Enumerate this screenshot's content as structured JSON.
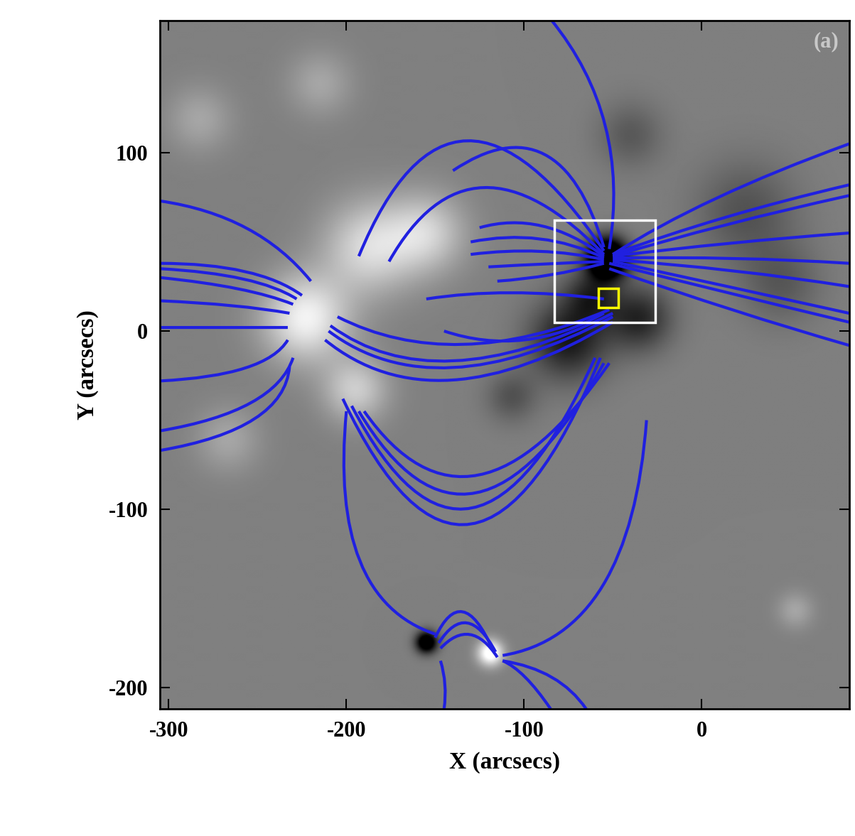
{
  "chart_data": {
    "type": "magnetogram",
    "panel_label": "(a)",
    "xlabel": "X (arcsecs)",
    "ylabel": "Y (arcsecs)",
    "xlim": [
      -305,
      83
    ],
    "ylim": [
      -212,
      174
    ],
    "xticks": [
      -300,
      -200,
      -100,
      0
    ],
    "yticks": [
      -200,
      -100,
      0,
      100
    ],
    "regions": [
      {
        "x": -53,
        "y": 41,
        "radius": 11,
        "flux": -2.0
      },
      {
        "x": -75,
        "y": -5,
        "radius": 22,
        "flux": -0.8
      },
      {
        "x": -35,
        "y": 7,
        "radius": 18,
        "flux": -0.7
      },
      {
        "x": -62,
        "y": 20,
        "radius": 15,
        "flux": -0.6
      },
      {
        "x": 25,
        "y": 67,
        "radius": 28,
        "flux": -0.35
      },
      {
        "x": 45,
        "y": 27,
        "radius": 22,
        "flux": -0.3
      },
      {
        "x": -107,
        "y": -37,
        "radius": 14,
        "flux": -0.35
      },
      {
        "x": -40,
        "y": 110,
        "radius": 18,
        "flux": -0.3
      },
      {
        "x": -155,
        "y": -175,
        "radius": 6,
        "flux": -1.5
      },
      {
        "x": -223,
        "y": 7,
        "radius": 24,
        "flux": 0.9
      },
      {
        "x": -187,
        "y": 47,
        "radius": 26,
        "flux": 0.7
      },
      {
        "x": -155,
        "y": 55,
        "radius": 22,
        "flux": 0.6
      },
      {
        "x": -195,
        "y": -33,
        "radius": 18,
        "flux": 0.6
      },
      {
        "x": -283,
        "y": 119,
        "radius": 18,
        "flux": 0.3
      },
      {
        "x": -215,
        "y": 139,
        "radius": 18,
        "flux": 0.3
      },
      {
        "x": -267,
        "y": -61,
        "radius": 18,
        "flux": 0.3
      },
      {
        "x": -119,
        "y": -181,
        "radius": 7,
        "flux": 1.2
      },
      {
        "x": 53,
        "y": -157,
        "radius": 10,
        "flux": 0.3
      }
    ],
    "field_lines": {
      "color": "#2020e0",
      "lines": [
        [
          [
            -193,
            42
          ],
          [
            -140,
            170
          ],
          [
            -55,
            45
          ]
        ],
        [
          [
            -176,
            39
          ],
          [
            -130,
            120
          ],
          [
            -55,
            43
          ]
        ],
        [
          [
            -125,
            58
          ],
          [
            -90,
            68
          ],
          [
            -55,
            42
          ]
        ],
        [
          [
            -130,
            50
          ],
          [
            -90,
            58
          ],
          [
            -55,
            41
          ]
        ],
        [
          [
            -130,
            43
          ],
          [
            -90,
            48
          ],
          [
            -55,
            40
          ]
        ],
        [
          [
            -120,
            36
          ],
          [
            -85,
            38
          ],
          [
            -55,
            39
          ]
        ],
        [
          [
            -115,
            28
          ],
          [
            -85,
            30
          ],
          [
            -55,
            38
          ]
        ],
        [
          [
            -85,
            175
          ],
          [
            -40,
            120
          ],
          [
            -52,
            46
          ]
        ],
        [
          [
            -140,
            90
          ],
          [
            -80,
            130
          ],
          [
            -55,
            47
          ]
        ],
        [
          [
            -50,
            43
          ],
          [
            0,
            75
          ],
          [
            83,
            105
          ]
        ],
        [
          [
            -50,
            43
          ],
          [
            10,
            65
          ],
          [
            83,
            82
          ]
        ],
        [
          [
            -50,
            42
          ],
          [
            10,
            60
          ],
          [
            83,
            76
          ]
        ],
        [
          [
            -50,
            42
          ],
          [
            15,
            50
          ],
          [
            83,
            55
          ]
        ],
        [
          [
            -50,
            41
          ],
          [
            20,
            42
          ],
          [
            83,
            38
          ]
        ],
        [
          [
            -50,
            40
          ],
          [
            20,
            35
          ],
          [
            83,
            25
          ]
        ],
        [
          [
            -50,
            39
          ],
          [
            15,
            25
          ],
          [
            83,
            10
          ]
        ],
        [
          [
            -52,
            38
          ],
          [
            20,
            20
          ],
          [
            83,
            5
          ]
        ],
        [
          [
            -52,
            35
          ],
          [
            20,
            10
          ],
          [
            83,
            -8
          ]
        ],
        [
          [
            -305,
            73
          ],
          [
            -250,
            65
          ],
          [
            -220,
            28
          ]
        ],
        [
          [
            -305,
            38
          ],
          [
            -250,
            38
          ],
          [
            -225,
            20
          ]
        ],
        [
          [
            -305,
            35
          ],
          [
            -250,
            32
          ],
          [
            -228,
            18
          ]
        ],
        [
          [
            -305,
            30
          ],
          [
            -255,
            25
          ],
          [
            -230,
            15
          ]
        ],
        [
          [
            -305,
            17
          ],
          [
            -260,
            15
          ],
          [
            -232,
            10
          ]
        ],
        [
          [
            -305,
            2
          ],
          [
            -260,
            2
          ],
          [
            -233,
            2
          ]
        ],
        [
          [
            -305,
            -28
          ],
          [
            -245,
            -25
          ],
          [
            -233,
            -5
          ]
        ],
        [
          [
            -305,
            -56
          ],
          [
            -240,
            -45
          ],
          [
            -230,
            -15
          ]
        ],
        [
          [
            -305,
            -67
          ],
          [
            -235,
            -55
          ],
          [
            -232,
            -20
          ]
        ],
        [
          [
            -205,
            8
          ],
          [
            -140,
            -25
          ],
          [
            -52,
            12
          ]
        ],
        [
          [
            -209,
            3
          ],
          [
            -150,
            -40
          ],
          [
            -50,
            10
          ]
        ],
        [
          [
            -210,
            0
          ],
          [
            -150,
            -45
          ],
          [
            -50,
            8
          ]
        ],
        [
          [
            -212,
            -5
          ],
          [
            -150,
            -55
          ],
          [
            -50,
            5
          ]
        ],
        [
          [
            -155,
            18
          ],
          [
            -110,
            25
          ],
          [
            -55,
            18
          ]
        ],
        [
          [
            -145,
            0
          ],
          [
            -100,
            -15
          ],
          [
            -55,
            10
          ]
        ],
        [
          [
            -202,
            -38
          ],
          [
            -130,
            -190
          ],
          [
            -57,
            -15
          ]
        ],
        [
          [
            -197,
            -42
          ],
          [
            -130,
            -170
          ],
          [
            -60,
            -15
          ]
        ],
        [
          [
            -193,
            -45
          ],
          [
            -130,
            -150
          ],
          [
            -55,
            -18
          ]
        ],
        [
          [
            -190,
            -45
          ],
          [
            -130,
            -130
          ],
          [
            -52,
            -18
          ]
        ],
        [
          [
            -200,
            -45
          ],
          [
            -210,
            -150
          ],
          [
            -150,
            -170
          ]
        ],
        [
          [
            -31,
            -50
          ],
          [
            -40,
            -170
          ],
          [
            -112,
            -182
          ]
        ],
        [
          [
            -150,
            -172
          ],
          [
            -135,
            -140
          ],
          [
            -118,
            -178
          ]
        ],
        [
          [
            -148,
            -175
          ],
          [
            -132,
            -150
          ],
          [
            -116,
            -180
          ]
        ],
        [
          [
            -147,
            -178
          ],
          [
            -130,
            -160
          ],
          [
            -115,
            -183
          ]
        ],
        [
          [
            -147,
            -185
          ],
          [
            -143,
            -198
          ],
          [
            -145,
            -212
          ]
        ],
        [
          [
            -112,
            -185
          ],
          [
            -100,
            -190
          ],
          [
            -85,
            -212
          ]
        ],
        [
          [
            -112,
            -185
          ],
          [
            -80,
            -190
          ],
          [
            -65,
            -212
          ]
        ]
      ]
    },
    "boxes": [
      {
        "x": [
          -83,
          -26
        ],
        "y": [
          5,
          62
        ],
        "color": "white"
      },
      {
        "x": [
          -58,
          -47
        ],
        "y": [
          13,
          24
        ],
        "color": "yellow"
      }
    ]
  }
}
